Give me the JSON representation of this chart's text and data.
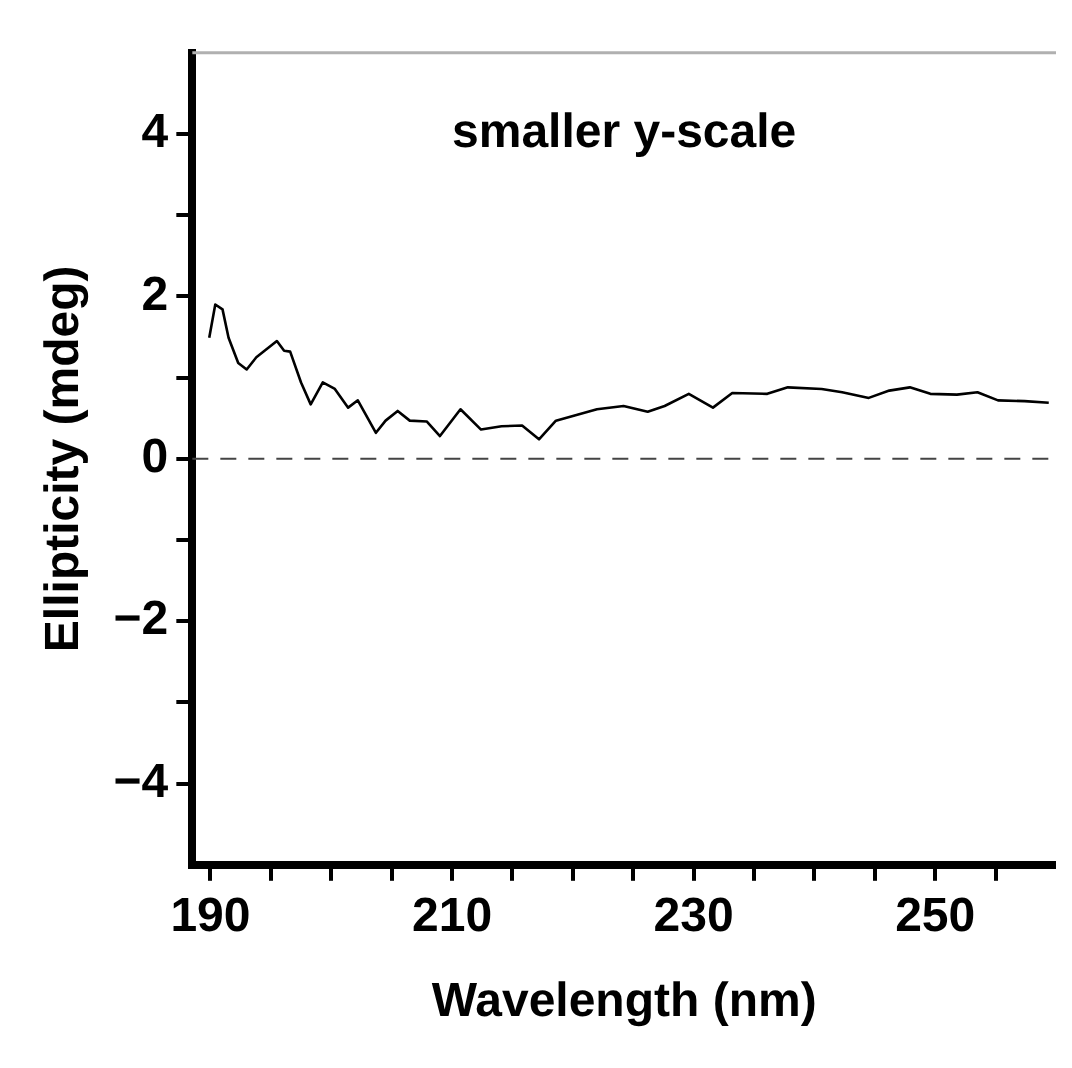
{
  "chart_data": {
    "type": "line",
    "title": "smaller y-scale",
    "xlabel": "Wavelength (nm)",
    "ylabel": "Ellipticity (mdeg)",
    "series": [
      {
        "color": "#000000",
        "x": [
          189.9,
          190.4,
          191.0,
          191.5,
          192.3,
          193.0,
          193.8,
          195.5,
          196.1,
          196.6,
          197.5,
          198.3,
          199.3,
          200.3,
          201.4,
          202.2,
          203.7,
          204.5,
          205.5,
          206.5,
          207.9,
          209.0,
          210.7,
          212.4,
          214.1,
          215.8,
          217.2,
          218.6,
          220.3,
          222.0,
          224.2,
          226.2,
          227.6,
          229.6,
          231.6,
          233.2,
          236.1,
          237.8,
          240.6,
          242.3,
          244.5,
          246.2,
          247.9,
          249.6,
          251.8,
          253.5,
          255.2,
          257.4,
          259.4
        ],
        "values": [
          1.49,
          1.9,
          1.84,
          1.49,
          1.18,
          1.1,
          1.25,
          1.45,
          1.33,
          1.32,
          0.94,
          0.67,
          0.94,
          0.86,
          0.63,
          0.72,
          0.32,
          0.47,
          0.59,
          0.47,
          0.46,
          0.28,
          0.61,
          0.36,
          0.4,
          0.41,
          0.24,
          0.47,
          0.54,
          0.61,
          0.65,
          0.58,
          0.65,
          0.8,
          0.63,
          0.81,
          0.8,
          0.88,
          0.86,
          0.82,
          0.75,
          0.84,
          0.88,
          0.8,
          0.79,
          0.82,
          0.72,
          0.71,
          0.69
        ]
      }
    ],
    "xlim": [
      188.5,
      260
    ],
    "xticks": [
      190,
      {
        "value": 195,
        "label": null
      },
      {
        "value": 200,
        "label": null
      },
      {
        "value": 205,
        "label": null
      },
      210,
      {
        "value": 215,
        "label": null
      },
      {
        "value": 220,
        "label": null
      },
      {
        "value": 225,
        "label": null
      },
      230,
      {
        "value": 235,
        "label": null
      },
      {
        "value": 240,
        "label": null
      },
      {
        "value": 245,
        "label": null
      },
      250,
      {
        "value": 255,
        "label": null
      }
    ],
    "ylim": [
      -5,
      5
    ],
    "yticks": [
      {
        "value": -4,
        "label": "−4"
      },
      {
        "value": -3,
        "label": null
      },
      {
        "value": -2,
        "label": "−2"
      },
      {
        "value": -1,
        "label": null
      },
      0,
      {
        "value": 1,
        "label": null
      },
      2,
      {
        "value": 3,
        "label": null
      },
      4
    ],
    "ref_lines": [
      {
        "axis": "y",
        "value": 0,
        "color": "#444444",
        "line_style": "dashed"
      }
    ],
    "grid": false,
    "legend": false,
    "marker": "none",
    "line_style": "solid"
  }
}
